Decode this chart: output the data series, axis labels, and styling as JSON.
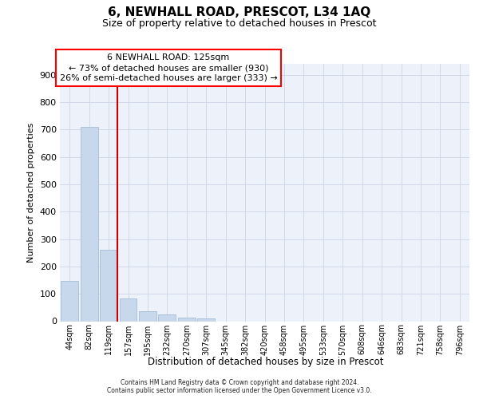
{
  "title": "6, NEWHALL ROAD, PRESCOT, L34 1AQ",
  "subtitle": "Size of property relative to detached houses in Prescot",
  "xlabel": "Distribution of detached houses by size in Prescot",
  "ylabel": "Number of detached properties",
  "categories": [
    "44sqm",
    "82sqm",
    "119sqm",
    "157sqm",
    "195sqm",
    "232sqm",
    "270sqm",
    "307sqm",
    "345sqm",
    "382sqm",
    "420sqm",
    "458sqm",
    "495sqm",
    "533sqm",
    "570sqm",
    "608sqm",
    "646sqm",
    "683sqm",
    "721sqm",
    "758sqm",
    "796sqm"
  ],
  "values": [
    148,
    710,
    260,
    83,
    35,
    25,
    12,
    10,
    0,
    0,
    0,
    0,
    0,
    0,
    0,
    0,
    0,
    0,
    0,
    0,
    0
  ],
  "bar_color": "#c8d8ec",
  "bar_edge_color": "#9ab5cc",
  "grid_color": "#ccd5e5",
  "background_color": "#edf2fa",
  "vline_color": "#cc0000",
  "vline_pos": 2.45,
  "annotation_text": "6 NEWHALL ROAD: 125sqm\n← 73% of detached houses are smaller (930)\n26% of semi-detached houses are larger (333) →",
  "footer_line1": "Contains HM Land Registry data © Crown copyright and database right 2024.",
  "footer_line2": "Contains public sector information licensed under the Open Government Licence v3.0.",
  "ylim": [
    0,
    940
  ],
  "yticks": [
    0,
    100,
    200,
    300,
    400,
    500,
    600,
    700,
    800,
    900
  ]
}
